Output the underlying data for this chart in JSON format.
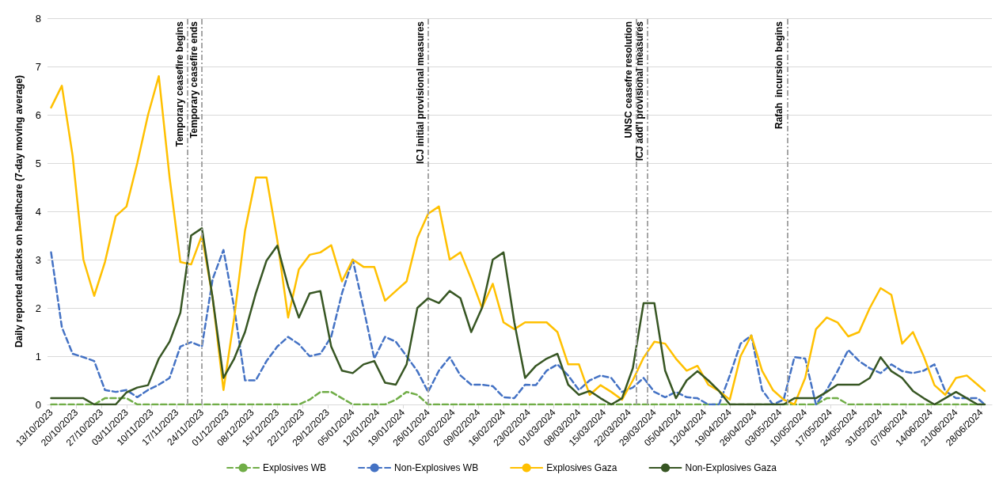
{
  "chart_data": {
    "type": "line",
    "ylabel": "Daily reported attacks on healthcare (7-day moving average)",
    "x": [
      "2023-10-13",
      "2023-10-16",
      "2023-10-19",
      "2023-10-22",
      "2023-10-25",
      "2023-10-28",
      "2023-10-31",
      "2023-11-03",
      "2023-11-06",
      "2023-11-09",
      "2023-11-12",
      "2023-11-15",
      "2023-11-18",
      "2023-11-21",
      "2023-11-24",
      "2023-11-27",
      "2023-11-30",
      "2023-12-03",
      "2023-12-06",
      "2023-12-09",
      "2023-12-12",
      "2023-12-15",
      "2023-12-18",
      "2023-12-21",
      "2023-12-24",
      "2023-12-27",
      "2023-12-30",
      "2024-01-02",
      "2024-01-05",
      "2024-01-08",
      "2024-01-11",
      "2024-01-14",
      "2024-01-17",
      "2024-01-20",
      "2024-01-23",
      "2024-01-26",
      "2024-01-29",
      "2024-02-01",
      "2024-02-04",
      "2024-02-07",
      "2024-02-10",
      "2024-02-13",
      "2024-02-16",
      "2024-02-19",
      "2024-02-22",
      "2024-02-25",
      "2024-02-28",
      "2024-03-02",
      "2024-03-05",
      "2024-03-08",
      "2024-03-11",
      "2024-03-14",
      "2024-03-17",
      "2024-03-20",
      "2024-03-23",
      "2024-03-26",
      "2024-03-29",
      "2024-04-01",
      "2024-04-04",
      "2024-04-07",
      "2024-04-10",
      "2024-04-13",
      "2024-04-16",
      "2024-04-19",
      "2024-04-22",
      "2024-04-25",
      "2024-04-28",
      "2024-05-01",
      "2024-05-04",
      "2024-05-07",
      "2024-05-10",
      "2024-05-13",
      "2024-05-16",
      "2024-05-19",
      "2024-05-22",
      "2024-05-25",
      "2024-05-28",
      "2024-05-31",
      "2024-06-03",
      "2024-06-06",
      "2024-06-09",
      "2024-06-12",
      "2024-06-15",
      "2024-06-18",
      "2024-06-21",
      "2024-06-24",
      "2024-06-27",
      "2024-06-29"
    ],
    "series": [
      {
        "name": "Explosives WB",
        "color": "#70ad47",
        "line_style": "dashed",
        "values": [
          0,
          0,
          0,
          0,
          0,
          0.13,
          0.13,
          0.13,
          0,
          0,
          0,
          0,
          0,
          0,
          0,
          0,
          0,
          0,
          0,
          0,
          0,
          0,
          0,
          0,
          0.1,
          0.26,
          0.26,
          0.13,
          0,
          0,
          0,
          0,
          0.1,
          0.26,
          0.2,
          0,
          0,
          0,
          0,
          0,
          0,
          0,
          0,
          0,
          0,
          0,
          0,
          0,
          0,
          0,
          0,
          0,
          0,
          0,
          0,
          0,
          0,
          0,
          0,
          0,
          0,
          0,
          0,
          0,
          0,
          0,
          0,
          0,
          0,
          0,
          0,
          0,
          0.13,
          0.13,
          0,
          0,
          0,
          0,
          0,
          0,
          0,
          0,
          0,
          0,
          0,
          0,
          0,
          0
        ]
      },
      {
        "name": "Non-Explosives WB",
        "color": "#4472c4",
        "line_style": "dashed",
        "values": [
          3.15,
          1.6,
          1.05,
          0.98,
          0.9,
          0.3,
          0.26,
          0.3,
          0.15,
          0.3,
          0.41,
          0.55,
          1.2,
          1.29,
          1.2,
          2.6,
          3.2,
          2.0,
          0.5,
          0.5,
          0.9,
          1.2,
          1.4,
          1.25,
          1.0,
          1.05,
          1.4,
          2.3,
          3.0,
          2.0,
          0.95,
          1.4,
          1.3,
          1.0,
          0.69,
          0.26,
          0.7,
          0.98,
          0.6,
          0.41,
          0.41,
          0.38,
          0.15,
          0.13,
          0.41,
          0.4,
          0.7,
          0.83,
          0.6,
          0.3,
          0.5,
          0.6,
          0.55,
          0.26,
          0.35,
          0.55,
          0.26,
          0.15,
          0.26,
          0.15,
          0.13,
          0,
          0,
          0.6,
          1.26,
          1.43,
          0.3,
          0,
          0.1,
          0.98,
          0.95,
          0,
          0.3,
          0.69,
          1.13,
          0.9,
          0.75,
          0.65,
          0.83,
          0.69,
          0.65,
          0.7,
          0.83,
          0.28,
          0.13,
          0.13,
          0.13,
          0
        ]
      },
      {
        "name": "Explosives Gaza",
        "color": "#ffc000",
        "line_style": "solid",
        "values": [
          6.15,
          6.6,
          5.15,
          3.0,
          2.25,
          2.95,
          3.9,
          4.1,
          5.0,
          6.0,
          6.8,
          4.7,
          2.95,
          2.9,
          3.5,
          2.2,
          0.3,
          1.8,
          3.6,
          4.7,
          4.7,
          3.4,
          1.8,
          2.8,
          3.1,
          3.15,
          3.3,
          2.55,
          3.0,
          2.85,
          2.85,
          2.15,
          2.35,
          2.55,
          3.45,
          3.95,
          4.1,
          3.0,
          3.15,
          2.6,
          2.0,
          2.5,
          1.7,
          1.56,
          1.7,
          1.7,
          1.7,
          1.5,
          0.83,
          0.83,
          0.2,
          0.4,
          0.26,
          0.1,
          0.5,
          0.97,
          1.3,
          1.26,
          0.95,
          0.7,
          0.8,
          0.41,
          0.28,
          0.1,
          1.0,
          1.43,
          0.7,
          0.3,
          0.1,
          0,
          0.55,
          1.56,
          1.8,
          1.7,
          1.41,
          1.5,
          2.0,
          2.41,
          2.27,
          1.26,
          1.5,
          1.0,
          0.4,
          0.2,
          0.55,
          0.6,
          0.41,
          0.28
        ]
      },
      {
        "name": "Non-Explosives Gaza",
        "color": "#375623",
        "line_style": "solid",
        "values": [
          0.13,
          0.13,
          0.13,
          0.13,
          0,
          0,
          0,
          0.25,
          0.35,
          0.4,
          0.95,
          1.3,
          1.9,
          3.5,
          3.65,
          2.2,
          0.55,
          0.95,
          1.5,
          2.3,
          2.98,
          3.29,
          2.45,
          1.8,
          2.3,
          2.35,
          1.2,
          0.7,
          0.65,
          0.83,
          0.9,
          0.45,
          0.41,
          0.83,
          2.0,
          2.2,
          2.1,
          2.35,
          2.2,
          1.5,
          2.0,
          3.0,
          3.15,
          1.7,
          0.55,
          0.8,
          0.95,
          1.05,
          0.41,
          0.2,
          0.28,
          0.13,
          0,
          0.13,
          0.75,
          2.1,
          2.1,
          0.7,
          0.13,
          0.5,
          0.69,
          0.5,
          0.28,
          0,
          0,
          0,
          0,
          0,
          0,
          0.13,
          0.13,
          0.13,
          0.26,
          0.41,
          0.41,
          0.41,
          0.55,
          0.98,
          0.69,
          0.55,
          0.28,
          0.13,
          0,
          0.13,
          0.26,
          0.13,
          0,
          0
        ]
      }
    ],
    "xlim": [
      "2023-10-12",
      "2024-07-01"
    ],
    "xticks": [
      {
        "value": "2023-10-13",
        "label": "13/10/2023"
      },
      {
        "value": "2023-10-20",
        "label": "20/10/2023"
      },
      {
        "value": "2023-10-27",
        "label": "27/10/2023"
      },
      {
        "value": "2023-11-03",
        "label": "03/11/2023"
      },
      {
        "value": "2023-11-10",
        "label": "10/11/2023"
      },
      {
        "value": "2023-11-17",
        "label": "17/11/2023"
      },
      {
        "value": "2023-11-24",
        "label": "24/11/2023"
      },
      {
        "value": "2023-12-01",
        "label": "01/12/2023"
      },
      {
        "value": "2023-12-08",
        "label": "08/12/2023"
      },
      {
        "value": "2023-12-15",
        "label": "15/12/2023"
      },
      {
        "value": "2023-12-22",
        "label": "22/12/2023"
      },
      {
        "value": "2023-12-29",
        "label": "29/12/2023"
      },
      {
        "value": "2024-01-05",
        "label": "05/01/2024"
      },
      {
        "value": "2024-01-12",
        "label": "12/01/2024"
      },
      {
        "value": "2024-01-19",
        "label": "19/01/2024"
      },
      {
        "value": "2024-01-26",
        "label": "26/01/2024"
      },
      {
        "value": "2024-02-02",
        "label": "02/02/2024"
      },
      {
        "value": "2024-02-09",
        "label": "09/02/2024"
      },
      {
        "value": "2024-02-16",
        "label": "16/02/2024"
      },
      {
        "value": "2024-02-23",
        "label": "23/02/2024"
      },
      {
        "value": "2024-03-01",
        "label": "01/03/2024"
      },
      {
        "value": "2024-03-08",
        "label": "08/03/2024"
      },
      {
        "value": "2024-03-15",
        "label": "15/03/2024"
      },
      {
        "value": "2024-03-22",
        "label": "22/03/2024"
      },
      {
        "value": "2024-03-29",
        "label": "29/03/2024"
      },
      {
        "value": "2024-04-05",
        "label": "05/04/2024"
      },
      {
        "value": "2024-04-12",
        "label": "12/04/2024"
      },
      {
        "value": "2024-04-19",
        "label": "19/04/2024"
      },
      {
        "value": "2024-04-26",
        "label": "26/04/2024"
      },
      {
        "value": "2024-05-03",
        "label": "03/05/2024"
      },
      {
        "value": "2024-05-10",
        "label": "10/05/2024"
      },
      {
        "value": "2024-05-17",
        "label": "17/05/2024"
      },
      {
        "value": "2024-05-24",
        "label": "24/05/2024"
      },
      {
        "value": "2024-05-31",
        "label": "31/05/2024"
      },
      {
        "value": "2024-06-07",
        "label": "07/06/2024"
      },
      {
        "value": "2024-06-14",
        "label": "14/06/2024"
      },
      {
        "value": "2024-06-21",
        "label": "21/06/2024"
      },
      {
        "value": "2024-06-28",
        "label": "28/06/2024"
      }
    ],
    "ylim": [
      0,
      8
    ],
    "yticks": [
      0,
      1,
      2,
      3,
      4,
      5,
      6,
      7,
      8
    ],
    "grid": "y",
    "legend": "bottom",
    "marker": "none",
    "ref_lines": [
      {
        "axis": "x",
        "value": "2023-11-20",
        "label": "Temporary ceasefire begins",
        "color": "#a6a6a6",
        "line_style": "dashed"
      },
      {
        "axis": "x",
        "value": "2023-11-24",
        "label": "Temporary ceasefire ends",
        "color": "#a6a6a6",
        "line_style": "dashed"
      },
      {
        "axis": "x",
        "value": "2024-01-26",
        "label": "ICJ initial provisional measures",
        "color": "#a6a6a6",
        "line_style": "dashed"
      },
      {
        "axis": "x",
        "value": "2024-03-24",
        "label": "UNSC ceasefre resolution",
        "color": "#a6a6a6",
        "line_style": "dashed"
      },
      {
        "axis": "x",
        "value": "2024-03-27",
        "label": "ICJ add'l provisional measures",
        "color": "#a6a6a6",
        "line_style": "dashed"
      },
      {
        "axis": "x",
        "value": "2024-05-05",
        "label": "Rafah  incursion begins",
        "color": "#a6a6a6",
        "line_style": "dashed"
      }
    ]
  }
}
